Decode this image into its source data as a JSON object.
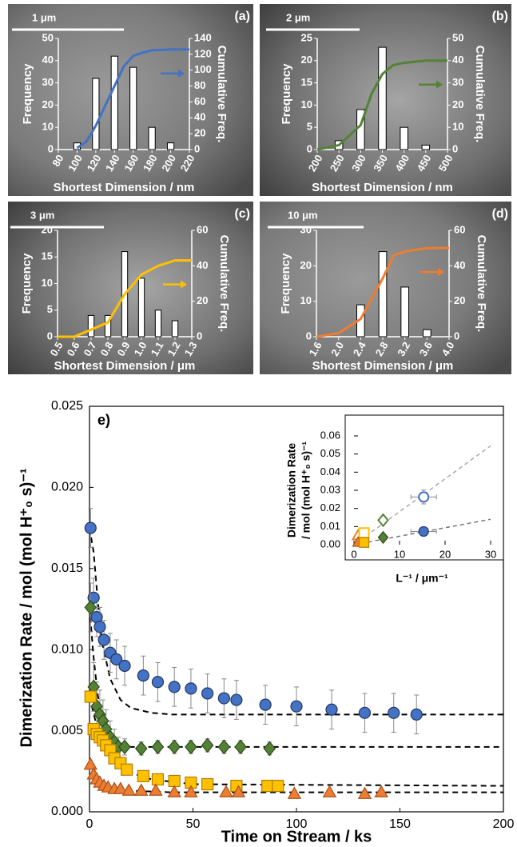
{
  "chart_data": [
    {
      "type": "bar",
      "label": "(a)",
      "scale_bar": "1 μm",
      "xlabel": "Shortest Dimension / nm",
      "ylabel": "Frequency",
      "y2label": "Cumulative Freq.",
      "xlim": [
        80,
        220
      ],
      "xticks": [
        80,
        100,
        120,
        140,
        160,
        180,
        200,
        220
      ],
      "ylim": [
        0,
        50
      ],
      "yticks": [
        0,
        10,
        20,
        30,
        40,
        50
      ],
      "y2lim": [
        0,
        140
      ],
      "y2ticks": [
        0,
        20,
        40,
        60,
        80,
        100,
        120,
        140
      ],
      "bars": {
        "x": [
          100,
          120,
          140,
          160,
          180,
          200
        ],
        "values": [
          3,
          32,
          42,
          37,
          10,
          3
        ],
        "color": "#ffffff"
      },
      "cumulative": {
        "x": [
          100,
          110,
          120,
          130,
          140,
          150,
          160,
          170,
          180,
          200,
          220
        ],
        "values": [
          2,
          10,
          30,
          55,
          80,
          105,
          118,
          122,
          125,
          126,
          126
        ],
        "color": "#4472c4",
        "axis": "y2"
      }
    },
    {
      "type": "bar",
      "label": "(b)",
      "scale_bar": "2 μm",
      "xlabel": "Shortest Dimension / nm",
      "ylabel": "Frequency",
      "y2label": "Cumulative Freq.",
      "xlim": [
        200,
        500
      ],
      "xticks": [
        200,
        250,
        300,
        350,
        400,
        450,
        500
      ],
      "ylim": [
        0,
        25
      ],
      "yticks": [
        0,
        5,
        10,
        15,
        20,
        25
      ],
      "y2lim": [
        0,
        50
      ],
      "y2ticks": [
        0,
        10,
        20,
        30,
        40,
        50
      ],
      "bars": {
        "x": [
          250,
          300,
          350,
          400,
          450
        ],
        "values": [
          2,
          9,
          23,
          5,
          1
        ],
        "color": "#ffffff"
      },
      "cumulative": {
        "x": [
          200,
          250,
          300,
          325,
          350,
          375,
          400,
          450,
          500
        ],
        "values": [
          0,
          2,
          11,
          25,
          34,
          38,
          39,
          40,
          40
        ],
        "color": "#548235",
        "axis": "y2"
      }
    },
    {
      "type": "bar",
      "label": "(c)",
      "scale_bar": "3 μm",
      "xlabel": "Shortest Dimension / μm",
      "ylabel": "Frequency",
      "y2label": "Cumulative Freq.",
      "xlim": [
        0.5,
        1.3
      ],
      "xticks": [
        0.5,
        0.6,
        0.7,
        0.8,
        0.9,
        {
          "value": 1,
          "label": "1.0"
        },
        1.1,
        1.2,
        1.3
      ],
      "ylim": [
        0,
        20
      ],
      "yticks": [
        0,
        5,
        10,
        15,
        20
      ],
      "y2lim": [
        0,
        60
      ],
      "y2ticks": [
        0,
        20,
        40,
        60
      ],
      "bars": {
        "x": [
          0.7,
          0.8,
          0.9,
          1,
          1.1,
          1.2
        ],
        "values": [
          4,
          4,
          16,
          11,
          5,
          3
        ],
        "color": "#ffffff"
      },
      "cumulative": {
        "x": [
          0.5,
          0.6,
          0.7,
          0.8,
          0.9,
          1,
          1.1,
          1.2,
          1.3
        ],
        "values": [
          0,
          0,
          4,
          8,
          24,
          35,
          40,
          43,
          43
        ],
        "color": "#ffc000",
        "axis": "y2"
      }
    },
    {
      "type": "bar",
      "label": "(d)",
      "scale_bar": "10 μm",
      "xlabel": "Shortest Dimension / μm",
      "ylabel": "Frequency",
      "y2label": "Cumulative Freq.",
      "xlim": [
        1.6,
        4
      ],
      "xticks": [
        1.6,
        {
          "value": 2,
          "label": "2.0"
        },
        2.4,
        2.8,
        3.2,
        3.6,
        {
          "value": 4,
          "label": "4.0"
        }
      ],
      "ylim": [
        0,
        30
      ],
      "yticks": [
        0,
        10,
        20,
        30
      ],
      "y2lim": [
        0,
        60
      ],
      "y2ticks": [
        0,
        20,
        40,
        60
      ],
      "bars": {
        "x": [
          2.4,
          2.8,
          3.2,
          3.6
        ],
        "values": [
          9,
          24,
          14,
          2
        ],
        "color": "#ffffff"
      },
      "cumulative": {
        "x": [
          1.6,
          2,
          2.4,
          2.8,
          3,
          3.2,
          3.6,
          4
        ],
        "values": [
          0,
          2,
          10,
          33,
          46,
          48,
          50,
          50
        ],
        "color": "#ed7d31",
        "axis": "y2"
      }
    },
    {
      "type": "scatter",
      "label": "e)",
      "xlabel": "Time on Stream / ks",
      "ylabel": "Dimerization Rate / mol (mol H⁺₀ s)⁻¹",
      "xlim": [
        0,
        200
      ],
      "xticks": [
        0,
        50,
        100,
        150,
        200
      ],
      "ylim": [
        0,
        0.025
      ],
      "yticks": [
        {
          "value": 0,
          "label": "0.000"
        },
        {
          "value": 0.005,
          "label": "0.005"
        },
        {
          "value": 0.01,
          "label": "0.010"
        },
        {
          "value": 0.015,
          "label": "0.015"
        },
        {
          "value": 0.02,
          "label": "0.020"
        },
        {
          "value": 0.025,
          "label": "0.025"
        }
      ],
      "series": [
        {
          "color": "#4472c4",
          "marker": "circle",
          "x": [
            0.5,
            2,
            3.5,
            5,
            7,
            10,
            13,
            17,
            26,
            33,
            41,
            49,
            57,
            65,
            71,
            85,
            100,
            117,
            133,
            147,
            158
          ],
          "values": [
            0.0175,
            0.0132,
            0.012,
            0.0114,
            0.0106,
            0.0098,
            0.0094,
            0.009,
            0.0084,
            0.008,
            0.0077,
            0.0076,
            0.0073,
            0.007,
            0.0069,
            0.0066,
            0.0065,
            0.0063,
            0.0061,
            0.0061,
            0.006
          ],
          "errors": [
            0.0012,
            0.0012,
            0.0012,
            0.0012,
            0.0012,
            0.0012,
            0.0012,
            0.0012,
            0.0012,
            0.0012,
            0.0012,
            0.0012,
            0.0012,
            0.0012,
            0.0012,
            0.0012,
            0.0012,
            0.0012,
            0.0012,
            0.0012,
            0.0012
          ]
        },
        {
          "color": "#548235",
          "marker": "diamond",
          "x": [
            0.5,
            2,
            3.5,
            5,
            6.5,
            8,
            10,
            12,
            14,
            17,
            25,
            33,
            41,
            49,
            57,
            65,
            73,
            87
          ],
          "values": [
            0.0126,
            0.0077,
            0.0065,
            0.006,
            0.0056,
            0.0051,
            0.0046,
            0.0043,
            0.004,
            0.004,
            0.0039,
            0.004,
            0.004,
            0.004,
            0.0041,
            0.004,
            0.004,
            0.0039
          ],
          "errors": [
            0.0015,
            0.0015,
            0.0015,
            0.0015,
            0.0013,
            0.0012,
            0.001,
            0.0008,
            0.0006,
            0.0005,
            0.0004,
            0.0004,
            0.0004,
            0.0004,
            0.0004,
            0.0004,
            0.0004,
            0.0004
          ]
        },
        {
          "color": "#ffc000",
          "marker": "square",
          "x": [
            0.5,
            2,
            3.5,
            5,
            6.5,
            8,
            10,
            12,
            15,
            18,
            26,
            33,
            41,
            49,
            57,
            71,
            86,
            91
          ],
          "values": [
            0.0071,
            0.0051,
            0.0048,
            0.0046,
            0.0044,
            0.0041,
            0.0038,
            0.0033,
            0.003,
            0.0026,
            0.0022,
            0.002,
            0.0019,
            0.0018,
            0.0017,
            0.0016,
            0.0016,
            0.0016
          ]
        },
        {
          "color": "#ed7d31",
          "marker": "triangle",
          "x": [
            0.5,
            2,
            3.5,
            5,
            7,
            9,
            12,
            15,
            19,
            25,
            32,
            41,
            49,
            66,
            72,
            99,
            116,
            133,
            141
          ],
          "values": [
            0.0029,
            0.0023,
            0.002,
            0.0018,
            0.0016,
            0.0015,
            0.0014,
            0.0014,
            0.0013,
            0.0013,
            0.0013,
            0.0012,
            0.0012,
            0.0012,
            0.0012,
            0.0011,
            0.0012,
            0.0011,
            0.0012
          ]
        }
      ],
      "fits": [
        {
          "color": "#000000",
          "x": [
            0,
            2,
            4,
            6,
            10,
            15,
            20,
            30,
            40,
            200
          ],
          "values": [
            0.0175,
            0.016,
            0.013,
            0.0105,
            0.0082,
            0.0069,
            0.0064,
            0.0061,
            0.006,
            0.006
          ]
        },
        {
          "color": "#000000",
          "x": [
            0,
            2,
            4,
            6,
            10,
            15,
            20,
            200
          ],
          "values": [
            0.0126,
            0.0095,
            0.0072,
            0.0058,
            0.0046,
            0.0042,
            0.004,
            0.004
          ]
        },
        {
          "color": "#000000",
          "x": [
            0,
            5,
            10,
            20,
            30,
            50,
            200
          ],
          "values": [
            0.0071,
            0.0045,
            0.0035,
            0.0024,
            0.002,
            0.0017,
            0.0016
          ]
        },
        {
          "color": "#000000",
          "x": [
            0,
            5,
            10,
            20,
            40,
            200
          ],
          "values": [
            0.0029,
            0.0019,
            0.0015,
            0.0013,
            0.0012,
            0.0012
          ]
        }
      ],
      "inset": {
        "type": "scatter",
        "xlabel": "L⁻¹ / μm⁻¹",
        "ylabel": [
          "Dimerization Rate",
          "/ mol (mol H⁺₀ s)⁻¹"
        ],
        "xlim": [
          0,
          30
        ],
        "xticks": [
          0,
          10,
          20,
          30
        ],
        "ylim": [
          0,
          0.06
        ],
        "yticks": [
          {
            "value": 0,
            "label": "0.00"
          },
          {
            "value": 0.01,
            "label": "0.01"
          },
          {
            "value": 0.02,
            "label": "0.02"
          },
          {
            "value": 0.03,
            "label": "0.03"
          },
          {
            "value": 0.04,
            "label": "0.04"
          },
          {
            "value": 0.05,
            "label": "0.05"
          },
          {
            "value": 0.06,
            "label": "0.06"
          }
        ],
        "fits": [
          {
            "color": "#aaaaaa",
            "x": [
              0,
              30
            ],
            "values": [
              0,
              0.0545
            ]
          },
          {
            "color": "#777777",
            "x": [
              0,
              30
            ],
            "values": [
              0,
              0.014
            ]
          }
        ],
        "series": [
          {
            "color": "#ed7d31",
            "marker": "triangle",
            "filled": false,
            "x": [
              0.9
            ],
            "values": [
              0.005
            ]
          },
          {
            "color": "#ffc000",
            "marker": "square",
            "filled": false,
            "x": [
              2.2
            ],
            "values": [
              0.0065
            ]
          },
          {
            "color": "#548235",
            "marker": "diamond",
            "filled": false,
            "x": [
              6.4
            ],
            "values": [
              0.0135
            ],
            "errors": [
              0.0015
            ]
          },
          {
            "color": "#4472c4",
            "marker": "circle",
            "filled": false,
            "x": [
              15.3
            ],
            "values": [
              0.0263
            ],
            "errors": [
              0.0038
            ],
            "xerr": [
              2.8
            ]
          },
          {
            "color": "#ed7d31",
            "marker": "triangle",
            "filled": true,
            "x": [
              0.9
            ],
            "values": [
              0.0012
            ]
          },
          {
            "color": "#ffc000",
            "marker": "square",
            "filled": true,
            "x": [
              2.2
            ],
            "values": [
              0.0012
            ]
          },
          {
            "color": "#548235",
            "marker": "diamond",
            "filled": true,
            "x": [
              6.4
            ],
            "values": [
              0.004
            ]
          },
          {
            "color": "#4472c4",
            "marker": "circle",
            "filled": true,
            "x": [
              15.3
            ],
            "values": [
              0.0073
            ],
            "xerr": [
              2.8
            ]
          }
        ]
      }
    }
  ]
}
